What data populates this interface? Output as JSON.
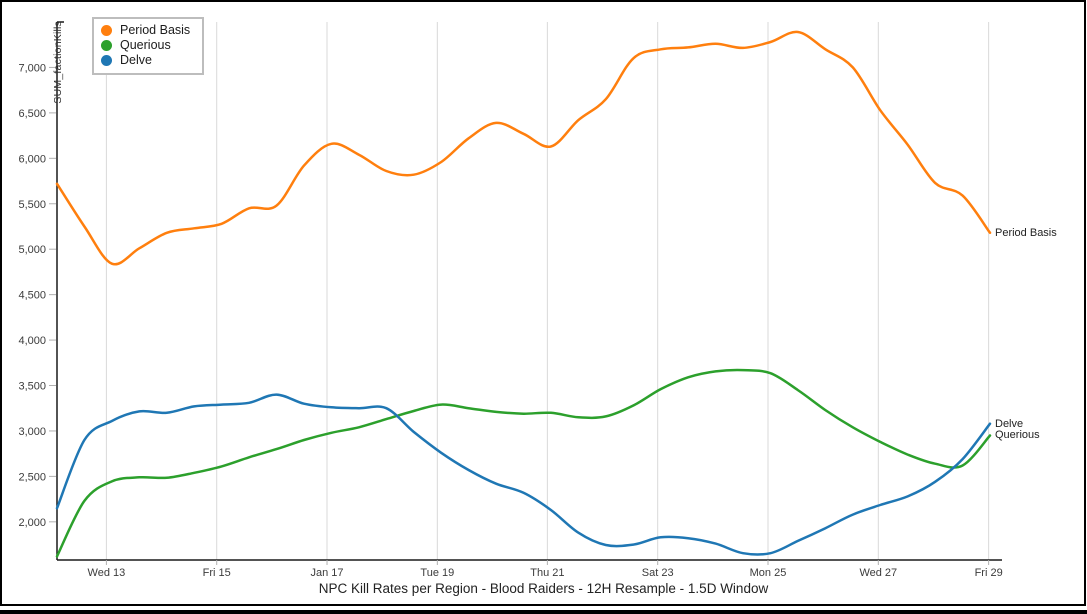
{
  "title": "NPC Kill Rates per Region - Blood Raiders - 12H Resample - 1.5D Window",
  "y_axis_label": "SUM_factionKills",
  "colors": {
    "background": "#ffffff",
    "window_border": "#000000",
    "axis_line": "#1a1a1a",
    "gridline": "#d9d9d9",
    "tick_mark": "#b0b0b0",
    "tick_text": "#3b3b3b",
    "orange": "#ff7f0e",
    "green": "#2ca02c",
    "blue": "#1f77b4"
  },
  "chart_data": {
    "type": "line",
    "title": "NPC Kill Rates per Region - Blood Raiders - 12H Resample - 1.5D Window",
    "ylabel": "SUM_factionKills",
    "xlabel": "",
    "ylim": [
      1580,
      7500
    ],
    "y_tick_values": [
      2000,
      2500,
      3000,
      3500,
      4000,
      4500,
      5000,
      5500,
      6000,
      6500,
      7000
    ],
    "x_tick_labels": [
      "Wed 13",
      "Fri 15",
      "Jan 17",
      "Tue 19",
      "Thu 21",
      "Sat 23",
      "Mon 25",
      "Wed 27",
      "Fri 29"
    ],
    "x_tick_indices": [
      1.8,
      5.82,
      9.84,
      13.86,
      17.87,
      21.89,
      25.91,
      29.93,
      33.95
    ],
    "sample_interval": "12H",
    "grid": "vertical-only",
    "legend_position": "top-left-inside",
    "series": [
      {
        "name": "Period Basis",
        "color": "#ff7f0e",
        "values": [
          5720,
          5250,
          4840,
          5010,
          5180,
          5230,
          5280,
          5450,
          5480,
          5920,
          6160,
          6040,
          5860,
          5820,
          5960,
          6220,
          6390,
          6270,
          6130,
          6420,
          6650,
          7100,
          7200,
          7220,
          7260,
          7215,
          7280,
          7390,
          7200,
          7000,
          6530,
          6150,
          5730,
          5590,
          5180
        ]
      },
      {
        "name": "Querious",
        "color": "#2ca02c",
        "values": [
          1620,
          2230,
          2445,
          2490,
          2485,
          2540,
          2610,
          2710,
          2800,
          2900,
          2980,
          3040,
          3130,
          3220,
          3290,
          3250,
          3210,
          3190,
          3200,
          3150,
          3160,
          3280,
          3460,
          3590,
          3655,
          3670,
          3635,
          3450,
          3230,
          3040,
          2880,
          2740,
          2640,
          2620,
          2950
        ]
      },
      {
        "name": "Delve",
        "color": "#1f77b4",
        "values": [
          2150,
          2900,
          3110,
          3215,
          3200,
          3270,
          3290,
          3310,
          3400,
          3300,
          3260,
          3250,
          3250,
          2990,
          2760,
          2570,
          2420,
          2320,
          2130,
          1880,
          1745,
          1750,
          1830,
          1820,
          1760,
          1655,
          1655,
          1790,
          1930,
          2080,
          2185,
          2280,
          2440,
          2690,
          3080
        ]
      }
    ]
  }
}
